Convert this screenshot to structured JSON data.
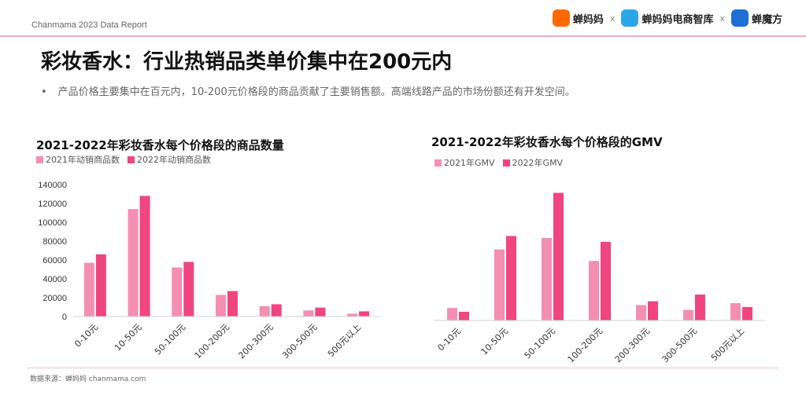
{
  "header": {
    "report": "Chanmama 2023 Data Report",
    "brands": [
      {
        "name": "蝉妈妈",
        "icon": "chanmama-logo-icon",
        "color": "#ff6a00"
      },
      {
        "name": "蝉妈妈电商智库",
        "icon": "zhiku-logo-icon",
        "color": "#2aa6e8"
      },
      {
        "name": "蝉魔方",
        "icon": "chanmofang-logo-icon",
        "color": "#1f6fd6"
      }
    ],
    "separator": "x"
  },
  "page_title": "彩妆香水：行业热销品类单价集中在200元内",
  "bullet": "产品价格主要集中在百元内，10-200元价格段的商品贡献了主要销售额。高端线路产品的市场份额还有开发空间。",
  "footer": "数据来源：蝉妈妈 chanmama.com",
  "colors": {
    "series_2021": "#f48fb1",
    "series_2022": "#f0457f",
    "accent_line": "#f4a8c4"
  },
  "chart_data": [
    {
      "type": "bar",
      "title": "2021-2022年彩妆香水每个价格段的商品数量",
      "categories": [
        "0-10元",
        "10-50元",
        "50-100元",
        "100-200元",
        "200-300元",
        "300-500元",
        "500元以上"
      ],
      "series": [
        {
          "name": "2021年动销商品数",
          "values": [
            57000,
            114000,
            52000,
            23000,
            11000,
            6500,
            3000
          ]
        },
        {
          "name": "2022年动销商品数",
          "values": [
            66000,
            128000,
            58000,
            27000,
            13000,
            9500,
            5500
          ]
        }
      ],
      "yticks": [
        "0",
        "20000",
        "40000",
        "60000",
        "80000",
        "100000",
        "120000",
        "140000"
      ],
      "ylim": [
        0,
        140000
      ],
      "legend": "top-left",
      "grid": false
    },
    {
      "type": "bar",
      "title": "2021-2022年彩妆香水每个价格段的GMV",
      "categories": [
        "0-10元",
        "10-50元",
        "50-100元",
        "100-200元",
        "200-300元",
        "300-500元",
        "500元以上"
      ],
      "series": [
        {
          "name": "2021年GMV",
          "values": [
            13,
            74,
            86,
            62,
            16,
            11,
            18
          ]
        },
        {
          "name": "2022年GMV",
          "values": [
            9,
            88,
            133,
            82,
            20,
            27,
            14
          ]
        }
      ],
      "ylim": [
        0,
        140
      ],
      "legend": "top-left",
      "grid": false
    }
  ]
}
